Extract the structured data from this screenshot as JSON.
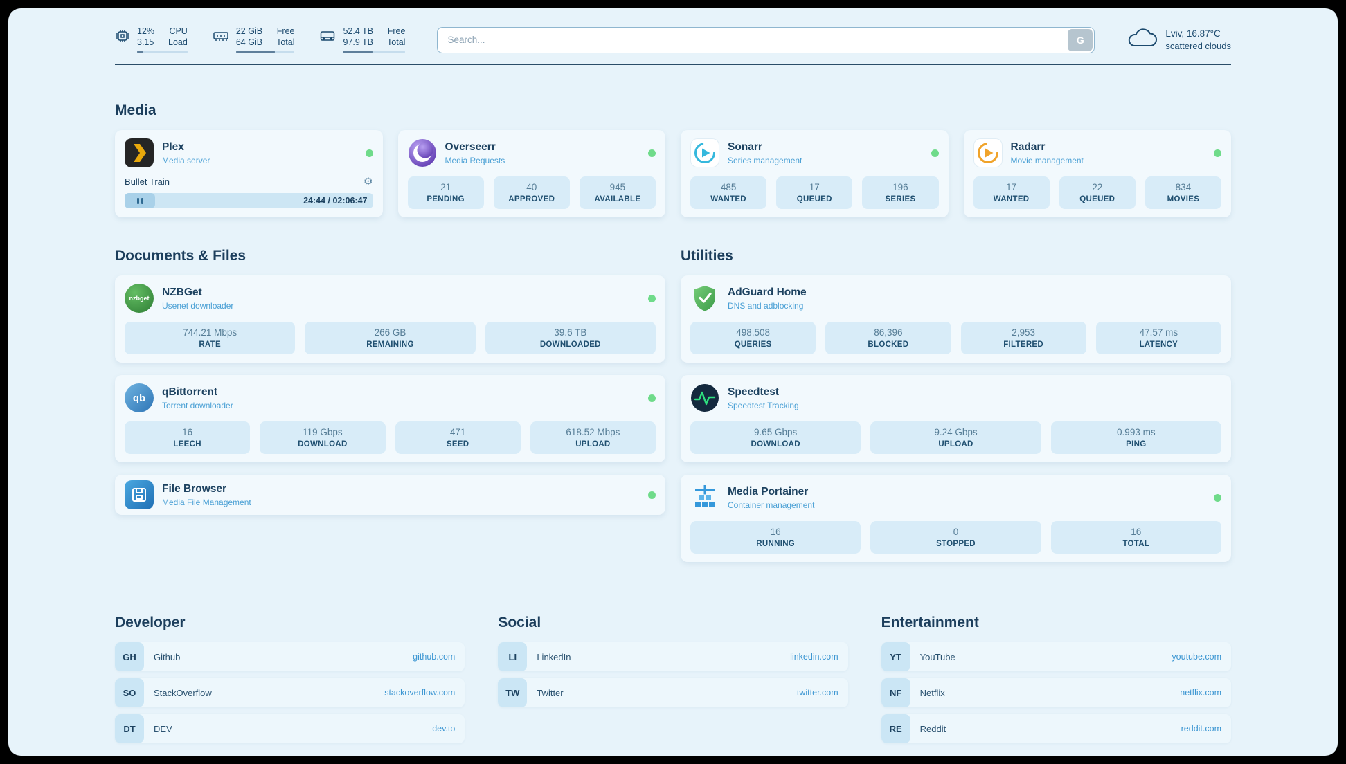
{
  "header": {
    "cpu": {
      "value_top": "12%",
      "value_bottom": "3.15",
      "label_top": "CPU",
      "label_bottom": "Load",
      "progress": 12
    },
    "ram": {
      "value_top": "22 GiB",
      "value_bottom": "64 GiB",
      "label_top": "Free",
      "label_bottom": "Total",
      "progress": 66
    },
    "disk": {
      "value_top": "52.4 TB",
      "value_bottom": "97.9 TB",
      "label_top": "Free",
      "label_bottom": "Total",
      "progress": 47
    },
    "search": {
      "placeholder": "Search...",
      "button_label": "G"
    },
    "weather": {
      "location": "Lviv, 16.87°C",
      "condition": "scattered clouds"
    }
  },
  "media": {
    "title": "Media",
    "plex": {
      "name": "Plex",
      "subtitle": "Media server",
      "now_playing": "Bullet Train",
      "time": "24:44 / 02:06:47",
      "progress": 20
    },
    "overseerr": {
      "name": "Overseerr",
      "subtitle": "Media Requests",
      "stats": [
        {
          "value": "21",
          "label": "PENDING"
        },
        {
          "value": "40",
          "label": "APPROVED"
        },
        {
          "value": "945",
          "label": "AVAILABLE"
        }
      ]
    },
    "sonarr": {
      "name": "Sonarr",
      "subtitle": "Series management",
      "stats": [
        {
          "value": "485",
          "label": "WANTED"
        },
        {
          "value": "17",
          "label": "QUEUED"
        },
        {
          "value": "196",
          "label": "SERIES"
        }
      ]
    },
    "radarr": {
      "name": "Radarr",
      "subtitle": "Movie management",
      "stats": [
        {
          "value": "17",
          "label": "WANTED"
        },
        {
          "value": "22",
          "label": "QUEUED"
        },
        {
          "value": "834",
          "label": "MOVIES"
        }
      ]
    }
  },
  "documents": {
    "title": "Documents & Files",
    "nzbget": {
      "name": "NZBGet",
      "subtitle": "Usenet downloader",
      "stats": [
        {
          "value": "744.21 Mbps",
          "label": "RATE"
        },
        {
          "value": "266 GB",
          "label": "REMAINING"
        },
        {
          "value": "39.6 TB",
          "label": "DOWNLOADED"
        }
      ]
    },
    "qbittorrent": {
      "name": "qBittorrent",
      "subtitle": "Torrent downloader",
      "stats": [
        {
          "value": "16",
          "label": "LEECH"
        },
        {
          "value": "119 Gbps",
          "label": "DOWNLOAD"
        },
        {
          "value": "471",
          "label": "SEED"
        },
        {
          "value": "618.52 Mbps",
          "label": "UPLOAD"
        }
      ]
    },
    "filebrowser": {
      "name": "File Browser",
      "subtitle": "Media File Management"
    }
  },
  "utilities": {
    "title": "Utilities",
    "adguard": {
      "name": "AdGuard Home",
      "subtitle": "DNS and adblocking",
      "stats": [
        {
          "value": "498,508",
          "label": "QUERIES"
        },
        {
          "value": "86,396",
          "label": "BLOCKED"
        },
        {
          "value": "2,953",
          "label": "FILTERED"
        },
        {
          "value": "47.57 ms",
          "label": "LATENCY"
        }
      ]
    },
    "speedtest": {
      "name": "Speedtest",
      "subtitle": "Speedtest Tracking",
      "stats": [
        {
          "value": "9.65 Gbps",
          "label": "DOWNLOAD"
        },
        {
          "value": "9.24 Gbps",
          "label": "UPLOAD"
        },
        {
          "value": "0.993 ms",
          "label": "PING"
        }
      ]
    },
    "portainer": {
      "name": "Media Portainer",
      "subtitle": "Container management",
      "stats": [
        {
          "value": "16",
          "label": "RUNNING"
        },
        {
          "value": "0",
          "label": "STOPPED"
        },
        {
          "value": "16",
          "label": "TOTAL"
        }
      ]
    }
  },
  "bookmarks": {
    "developer": {
      "title": "Developer",
      "items": [
        {
          "abbr": "GH",
          "name": "Github",
          "url": "github.com"
        },
        {
          "abbr": "SO",
          "name": "StackOverflow",
          "url": "stackoverflow.com"
        },
        {
          "abbr": "DT",
          "name": "DEV",
          "url": "dev.to"
        }
      ]
    },
    "social": {
      "title": "Social",
      "items": [
        {
          "abbr": "LI",
          "name": "LinkedIn",
          "url": "linkedin.com"
        },
        {
          "abbr": "TW",
          "name": "Twitter",
          "url": "twitter.com"
        }
      ]
    },
    "entertainment": {
      "title": "Entertainment",
      "items": [
        {
          "abbr": "YT",
          "name": "YouTube",
          "url": "youtube.com"
        },
        {
          "abbr": "NF",
          "name": "Netflix",
          "url": "netflix.com"
        },
        {
          "abbr": "RE",
          "name": "Reddit",
          "url": "reddit.com"
        }
      ]
    }
  },
  "icons": {
    "gear": "⚙",
    "nzbget_label": "nzbget",
    "qbittorrent_label": "qb"
  }
}
